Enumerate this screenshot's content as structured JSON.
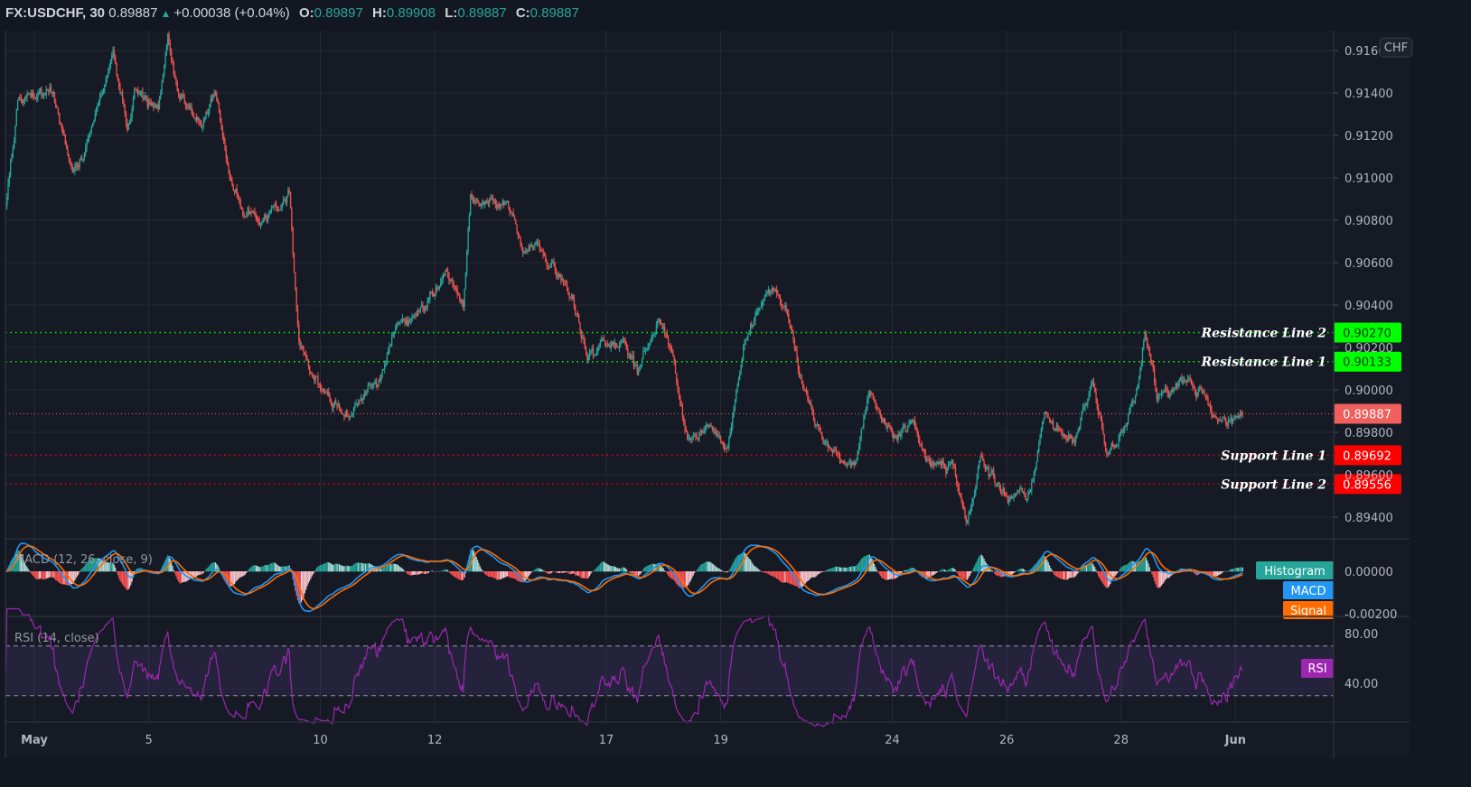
{
  "header": {
    "symbol": "FX:USDCHF, 30",
    "last": "0.89887",
    "direction_icon": "triangle-up-icon",
    "change": "+0.00038 (+0.04%)",
    "o_label": "O:",
    "o": "0.89897",
    "h_label": "H:",
    "h": "0.89908",
    "l_label": "L:",
    "l": "0.89887",
    "c_label": "C:",
    "c": "0.89887"
  },
  "colors": {
    "background": "#161a25",
    "grid": "#262a35",
    "up": "#26a69a",
    "down": "#ef5350",
    "resistance": "#00ff00",
    "support": "#ff0000",
    "last_price": "#ef5f5b",
    "macd": "#2196f3",
    "signal": "#ff6d00",
    "histogram": "#26a69a",
    "rsi": "#9c27b0"
  },
  "chart_data": [
    {
      "type": "candlestick",
      "interval": "30",
      "symbol": "FX:USDCHF",
      "currency_badge": "CHF",
      "ylim": [
        0.893,
        0.9172
      ],
      "y_ticks": [
        "0.91600",
        "0.91400",
        "0.91200",
        "0.91000",
        "0.90800",
        "0.90600",
        "0.90400",
        "0.90200",
        "0.90000",
        "0.89800",
        "0.89600",
        "0.89400"
      ],
      "x_ticks": [
        {
          "label": "May",
          "date": "May 3 00:00"
        },
        {
          "label": "5",
          "date": "May 5 00:00"
        },
        {
          "label": "10",
          "date": "May 10 00:00"
        },
        {
          "label": "12",
          "date": "May 12 00:00"
        },
        {
          "label": "17",
          "date": "May 17 00:00"
        },
        {
          "label": "19",
          "date": "May 19 00:00"
        },
        {
          "label": "24",
          "date": "May 24 00:00"
        },
        {
          "label": "26",
          "date": "May 26 00:00"
        },
        {
          "label": "28",
          "date": "May 28 00:00"
        },
        {
          "label": "Jun",
          "date": "Jun 1 00:00"
        }
      ],
      "grid": true,
      "price_path": [
        [
          "Apr 30 12:00",
          0.9086
        ],
        [
          "Apr 30 17:00",
          0.9135
        ],
        [
          "May 3 08:00",
          0.9141
        ],
        [
          "May 3 16:00",
          0.9099
        ],
        [
          "May 3 23:00",
          0.912
        ],
        [
          "May 4 03:00",
          0.9137
        ],
        [
          "May 4 09:00",
          0.9158
        ],
        [
          "May 4 15:00",
          0.912
        ],
        [
          "May 4 18:00",
          0.9141
        ],
        [
          "May 5 04:00",
          0.9131
        ],
        [
          "May 5 08:00",
          0.9165
        ],
        [
          "May 5 13:00",
          0.9137
        ],
        [
          "May 5 23:00",
          0.9126
        ],
        [
          "May 6 04:00",
          0.9143
        ],
        [
          "May 6 10:00",
          0.9099
        ],
        [
          "May 6 16:00",
          0.9086
        ],
        [
          "May 6 23:00",
          0.9077
        ],
        [
          "May 7 11:00",
          0.9092
        ],
        [
          "May 7 15:00",
          0.9026
        ],
        [
          "May 7 22:00",
          0.9005
        ],
        [
          "May 10 13:00",
          0.8988
        ],
        [
          "May 11 01:00",
          0.9005
        ],
        [
          "May 11 08:00",
          0.9031
        ],
        [
          "May 11 20:00",
          0.9039
        ],
        [
          "May 12 05:00",
          0.9056
        ],
        [
          "May 12 12:00",
          0.9039
        ],
        [
          "May 12 15:00",
          0.909
        ],
        [
          "May 13 06:00",
          0.9088
        ],
        [
          "May 13 13:00",
          0.9069
        ],
        [
          "May 14 01:00",
          0.906
        ],
        [
          "May 14 10:00",
          0.9043
        ],
        [
          "May 14 16:00",
          0.9014
        ],
        [
          "May 17 07:00",
          0.9024
        ],
        [
          "May 17 13:00",
          0.9009
        ],
        [
          "May 17 22:00",
          0.9033
        ],
        [
          "May 18 04:00",
          0.9018
        ],
        [
          "May 18 10:00",
          0.8975
        ],
        [
          "May 18 17:00",
          0.898
        ],
        [
          "May 19 03:00",
          0.8975
        ],
        [
          "May 19 10:00",
          0.9022
        ],
        [
          "May 19 18:00",
          0.9045
        ],
        [
          "May 20 03:00",
          0.9043
        ],
        [
          "May 20 09:00",
          0.9005
        ],
        [
          "May 20 19:00",
          0.8975
        ],
        [
          "May 21 08:00",
          0.8963
        ],
        [
          "May 21 14:00",
          0.8997
        ],
        [
          "May 24 01:00",
          0.898
        ],
        [
          "May 24 09:00",
          0.8985
        ],
        [
          "May 24 14:00",
          0.8967
        ],
        [
          "May 25 02:00",
          0.8963
        ],
        [
          "May 25 07:00",
          0.8933
        ],
        [
          "May 25 13:00",
          0.8967
        ],
        [
          "May 25 23:00",
          0.895
        ],
        [
          "May 26 10:00",
          0.8952
        ],
        [
          "May 26 16:00",
          0.8985
        ],
        [
          "May 27 05:00",
          0.8975
        ],
        [
          "May 27 12:00",
          0.9005
        ],
        [
          "May 27 18:00",
          0.8969
        ],
        [
          "May 28 02:00",
          0.898
        ],
        [
          "May 28 07:00",
          0.9005
        ],
        [
          "May 28 10:00",
          0.9029
        ],
        [
          "May 28 15:00",
          0.8997
        ],
        [
          "May 28 23:00",
          0.9001
        ],
        [
          "May 31 06:00",
          0.9005
        ],
        [
          "May 31 14:00",
          0.8988
        ],
        [
          "May 31 21:00",
          0.8986
        ],
        [
          "Jun 1 03:00",
          0.89887
        ]
      ],
      "horizontal_lines": [
        {
          "label": "Resistance Line 2",
          "value": "0.90270",
          "kind": "resistance"
        },
        {
          "label": "Resistance Line 1",
          "value": "0.90133",
          "kind": "resistance"
        },
        {
          "label": "Support Line 1",
          "value": "0.89692",
          "kind": "support"
        },
        {
          "label": "Support Line 2",
          "value": "0.89556",
          "kind": "support"
        }
      ],
      "last_price": "0.89887"
    },
    {
      "type": "macd",
      "title": "MACD (12, 26, close, 9)",
      "params": {
        "fast": 12,
        "slow": 26,
        "signal": 9,
        "source": "close"
      },
      "y_ticks": [
        "0.00000",
        "-0.00200"
      ],
      "legend": [
        "Histogram",
        "MACD",
        "Signal"
      ]
    },
    {
      "type": "rsi",
      "title": "RSI (14, close)",
      "params": {
        "length": 14,
        "source": "close"
      },
      "bands": [
        70,
        30
      ],
      "y_ticks": [
        "80.00",
        "40.00"
      ],
      "legend": [
        "RSI"
      ]
    }
  ]
}
